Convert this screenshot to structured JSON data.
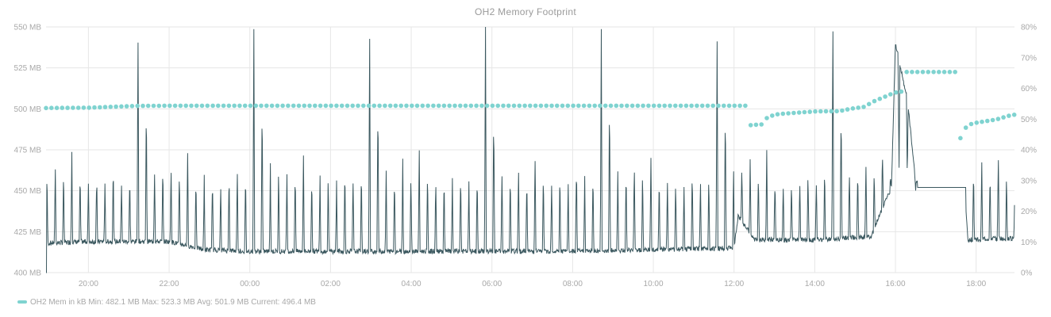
{
  "chart_data": {
    "type": "line",
    "title": "OH2 Memory Footprint",
    "x_ticks": [
      "20:00",
      "22:00",
      "00:00",
      "02:00",
      "04:00",
      "06:00",
      "08:00",
      "10:00",
      "12:00",
      "14:00",
      "16:00",
      "18:00"
    ],
    "x_range_hours": [
      18.95,
      42.95
    ],
    "y_left": {
      "label": "",
      "range": [
        400,
        550
      ],
      "ticks": [
        "400 MB",
        "425 MB",
        "450 MB",
        "475 MB",
        "500 MB",
        "525 MB",
        "550 MB"
      ],
      "tick_values": [
        400,
        425,
        450,
        475,
        500,
        525,
        550
      ]
    },
    "y_right": {
      "label": "",
      "range": [
        0,
        80
      ],
      "ticks": [
        "0%",
        "10%",
        "20%",
        "30%",
        "40%",
        "50%",
        "60%",
        "70%",
        "80%"
      ],
      "tick_values": [
        0,
        10,
        20,
        30,
        40,
        50,
        60,
        70,
        80
      ]
    },
    "grid": true,
    "legend_position": "bottom-left",
    "legend_text": "OH2 Mem in kB  Min: 482.1 MB  Max: 523.3 MB  Avg: 501.9 MB  Current: 496.4 MB",
    "series": [
      {
        "name": "OH2 Mem in kB",
        "render": "dots",
        "color": "#7fd3d0",
        "x_hours": [
          18.95,
          20.0,
          21.2,
          22.0,
          24.0,
          26.0,
          28.0,
          30.0,
          32.0,
          34.0,
          36.2,
          36.3,
          36.65,
          36.8,
          37.0,
          37.3,
          38.0,
          38.6,
          39.0,
          39.2,
          39.5,
          39.75,
          39.98,
          40.1,
          40.2,
          41.5,
          41.6,
          41.7,
          41.8,
          42.0,
          42.5,
          42.9
        ],
        "values": [
          500.5,
          500.7,
          501.8,
          501.9,
          501.9,
          501.9,
          501.9,
          501.9,
          501.9,
          501.9,
          501.9,
          489.8,
          490.5,
          494.2,
          496.5,
          497.2,
          498.4,
          498.6,
          500.5,
          501.0,
          505.0,
          507.5,
          510.0,
          510.5,
          522.5,
          522.5,
          482.1,
          488.5,
          490.2,
          491.5,
          493.5,
          496.4
        ]
      },
      {
        "name": "",
        "render": "line",
        "color": "#3b585f",
        "base_level_x_hours": [
          18.95,
          20.0,
          22.0,
          22.9,
          24.0,
          28.0,
          32.0,
          36.0,
          36.1,
          36.5,
          38.0,
          39.4,
          39.6,
          39.9,
          40.0,
          40.3,
          40.5,
          41.7,
          41.8,
          42.95
        ],
        "base_level_values": [
          418,
          419,
          419,
          414,
          413,
          413,
          413,
          415,
          435,
          420,
          420,
          422,
          435,
          452,
          540,
          505,
          455,
          452,
          420,
          421
        ],
        "spike_peak_values": [
          460,
          462,
          458,
          470,
          456,
          454,
          455,
          452,
          460,
          455,
          458,
          545,
          500,
          460
        ]
      }
    ]
  }
}
